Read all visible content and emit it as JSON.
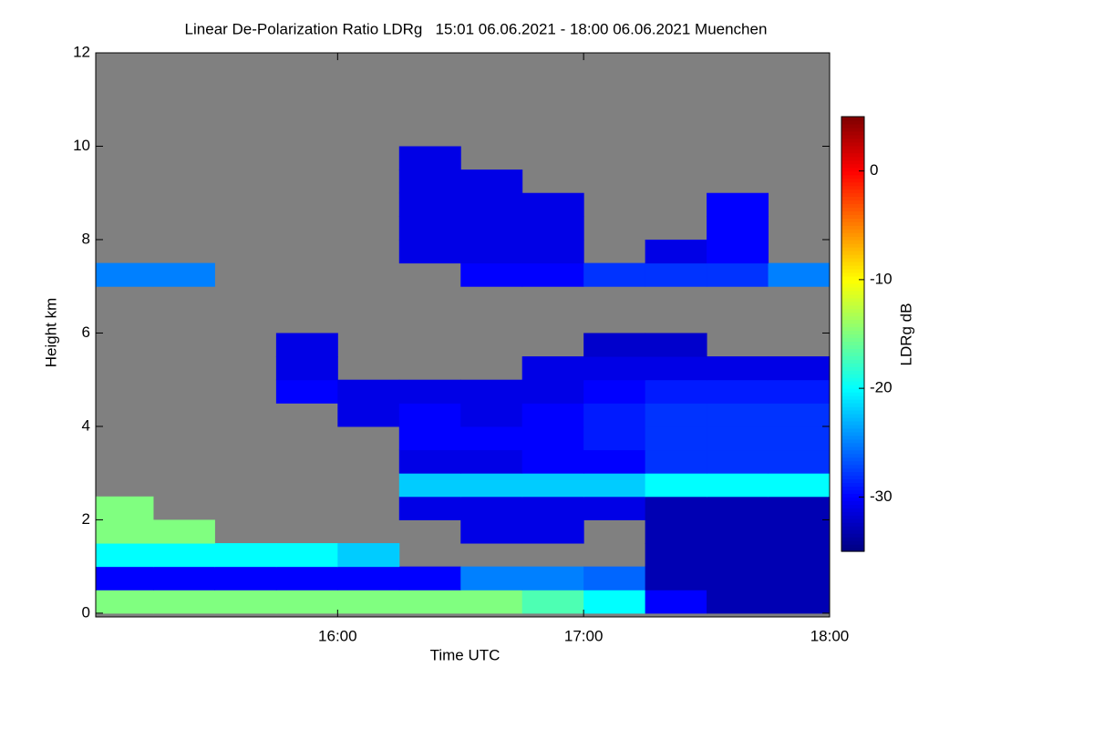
{
  "chart_data": {
    "type": "heatmap",
    "title": "Linear De-Polarization Ratio LDRg   15:01 06.06.2021 - 18:00 06.06.2021 Muenchen",
    "x_label": "Time UTC",
    "y_label": "Height km",
    "colorbar_label": "LDRg dB",
    "xlim": [
      15.0167,
      18.0
    ],
    "xticks": [
      {
        "value": 16,
        "label": "16:00"
      },
      {
        "value": 17,
        "label": "17:00"
      },
      {
        "value": 18,
        "label": "18:00"
      }
    ],
    "ylim": [
      -0.08,
      12
    ],
    "yticks": [
      0,
      2,
      4,
      6,
      8,
      10,
      12
    ],
    "clim": [
      -35,
      5
    ],
    "colorbar_ticks": [
      0,
      -10,
      -20,
      -30
    ],
    "colormap": "jet",
    "background": "#808080",
    "x_edges": [
      15.0,
      15.25,
      15.5,
      15.75,
      16.0,
      16.25,
      16.5,
      16.75,
      17.0,
      17.25,
      17.5,
      17.75,
      18.0
    ],
    "y_edges": [
      0,
      0.5,
      1,
      1.5,
      2,
      2.5,
      3,
      3.5,
      4,
      4.5,
      5,
      5.5,
      6,
      6.5,
      7,
      7.5,
      8,
      8.5,
      9,
      9.5,
      10,
      10.5,
      11,
      11.5,
      12
    ],
    "values": [
      [
        -15,
        -15,
        -15,
        -15,
        -15,
        -15,
        -15,
        -17,
        -20,
        -30,
        -33,
        -33
      ],
      [
        -30,
        -30,
        -30,
        -30,
        -30,
        -30,
        -25,
        -25,
        -26,
        -33,
        -33,
        -33
      ],
      [
        -20,
        -20,
        -20,
        -20,
        -22,
        null,
        null,
        null,
        null,
        -33,
        -33,
        -33
      ],
      [
        -15,
        -15,
        null,
        null,
        null,
        null,
        -31,
        -31,
        null,
        -33,
        -33,
        -33
      ],
      [
        -15,
        null,
        null,
        null,
        null,
        -31,
        -31,
        -31,
        -31,
        -33,
        -33,
        -33
      ],
      [
        null,
        null,
        null,
        null,
        null,
        -22,
        -22,
        -22,
        -22,
        -20,
        -20,
        -20
      ],
      [
        null,
        null,
        null,
        null,
        null,
        -31,
        -31,
        -30,
        -30,
        -28,
        -28,
        -28
      ],
      [
        null,
        null,
        null,
        null,
        null,
        -30,
        -30,
        -30,
        -29,
        -28,
        -28,
        -28
      ],
      [
        null,
        null,
        null,
        null,
        -31,
        -30,
        -31,
        -30,
        -29,
        -28,
        -28,
        -28
      ],
      [
        null,
        null,
        null,
        -30,
        -31,
        -31,
        -31,
        -31,
        -30,
        -29,
        -29,
        -29
      ],
      [
        null,
        null,
        null,
        -31,
        null,
        null,
        null,
        -31,
        -31,
        -31,
        -31,
        -31
      ],
      [
        null,
        null,
        null,
        -31,
        null,
        null,
        null,
        null,
        -32,
        -32,
        null,
        null
      ],
      [
        null,
        null,
        null,
        null,
        null,
        null,
        null,
        null,
        null,
        null,
        null,
        null
      ],
      [
        null,
        null,
        null,
        null,
        null,
        null,
        null,
        null,
        null,
        null,
        null,
        null
      ],
      [
        -25,
        -25,
        null,
        null,
        null,
        null,
        -30,
        -30,
        -28,
        -28,
        -28,
        -25
      ],
      [
        null,
        null,
        null,
        null,
        null,
        -31,
        -31,
        -31,
        null,
        -31,
        -30,
        null
      ],
      [
        null,
        null,
        null,
        null,
        null,
        -31,
        -31,
        -31,
        null,
        null,
        -30,
        null
      ],
      [
        null,
        null,
        null,
        null,
        null,
        -31,
        -31,
        -31,
        null,
        null,
        -30,
        null
      ],
      [
        null,
        null,
        null,
        null,
        null,
        -31,
        -31,
        null,
        null,
        null,
        null,
        null
      ],
      [
        null,
        null,
        null,
        null,
        null,
        -31,
        null,
        null,
        null,
        null,
        null,
        null
      ],
      [
        null,
        null,
        null,
        null,
        null,
        null,
        null,
        null,
        null,
        null,
        null,
        null
      ],
      [
        null,
        null,
        null,
        null,
        null,
        null,
        null,
        null,
        null,
        null,
        null,
        null
      ],
      [
        null,
        null,
        null,
        null,
        null,
        null,
        null,
        null,
        null,
        null,
        null,
        null
      ],
      [
        null,
        null,
        null,
        null,
        null,
        null,
        null,
        null,
        null,
        null,
        null,
        null
      ]
    ]
  }
}
